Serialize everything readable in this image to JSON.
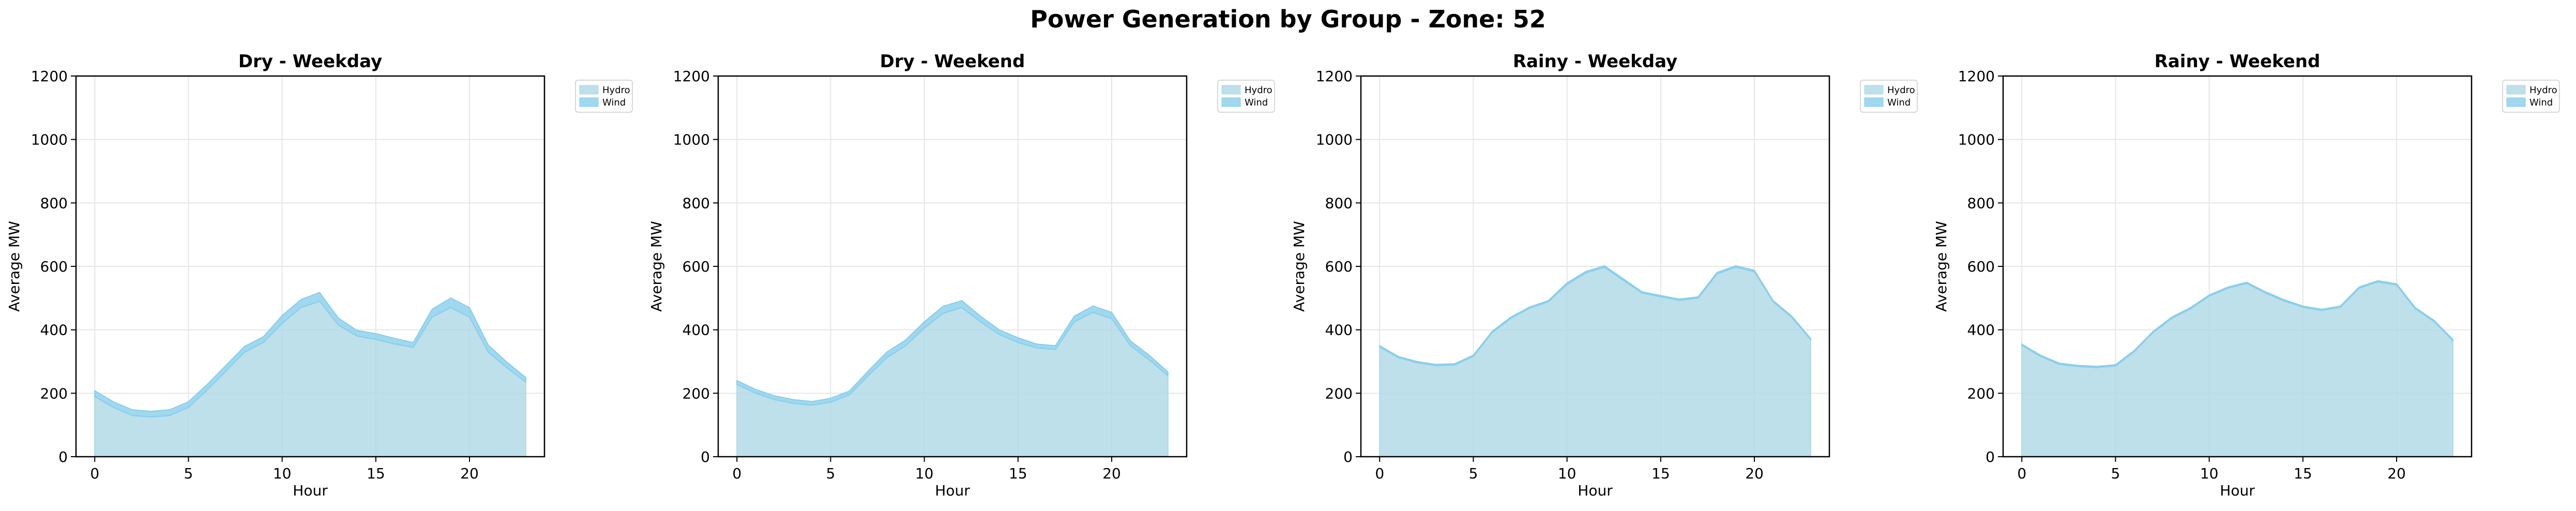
{
  "figure": {
    "title": "Power Generation by Group - Zone: 52"
  },
  "colors": {
    "hydro_fill": "#ADD8E6",
    "wind_fill": "#87CEEB",
    "grid": "#e6e6e6",
    "axis": "#000000"
  },
  "chart_data": [
    {
      "type": "area",
      "stacked": true,
      "title": "Dry - Weekday",
      "xlabel": "Hour",
      "ylabel": "Average MW",
      "xlim": [
        -1,
        24
      ],
      "ylim": [
        0,
        1200
      ],
      "xticks": [
        0,
        5,
        10,
        15,
        20
      ],
      "yticks": [
        0,
        200,
        400,
        600,
        800,
        1000,
        1200
      ],
      "grid": true,
      "legend_position": "outside-top-right",
      "x": [
        0,
        1,
        2,
        3,
        4,
        5,
        6,
        7,
        8,
        9,
        10,
        11,
        12,
        13,
        14,
        15,
        16,
        17,
        18,
        19,
        20,
        21,
        22,
        23
      ],
      "series": [
        {
          "name": "Hydro",
          "color": "#ADD8E6",
          "values": [
            190,
            155,
            130,
            125,
            130,
            155,
            210,
            270,
            330,
            360,
            420,
            470,
            490,
            415,
            380,
            370,
            355,
            345,
            440,
            470,
            440,
            330,
            280,
            235
          ]
        },
        {
          "name": "Wind",
          "color": "#87CEEB",
          "values": [
            18,
            18,
            18,
            18,
            18,
            18,
            18,
            18,
            18,
            18,
            25,
            25,
            28,
            22,
            18,
            18,
            18,
            15,
            25,
            30,
            30,
            22,
            18,
            15
          ]
        }
      ]
    },
    {
      "type": "area",
      "stacked": true,
      "title": "Dry - Weekend",
      "xlabel": "Hour",
      "ylabel": "Average MW",
      "xlim": [
        -1,
        24
      ],
      "ylim": [
        0,
        1200
      ],
      "xticks": [
        0,
        5,
        10,
        15,
        20
      ],
      "yticks": [
        0,
        200,
        400,
        600,
        800,
        1000,
        1200
      ],
      "grid": true,
      "legend_position": "outside-top-right",
      "x": [
        0,
        1,
        2,
        3,
        4,
        5,
        6,
        7,
        8,
        9,
        10,
        11,
        12,
        13,
        14,
        15,
        16,
        17,
        18,
        19,
        20,
        21,
        22,
        23
      ],
      "series": [
        {
          "name": "Hydro",
          "color": "#ADD8E6",
          "values": [
            228,
            200,
            180,
            168,
            162,
            172,
            195,
            255,
            312,
            350,
            405,
            452,
            470,
            425,
            385,
            360,
            343,
            338,
            425,
            455,
            435,
            350,
            305,
            255
          ]
        },
        {
          "name": "Wind",
          "color": "#87CEEB",
          "values": [
            12,
            12,
            12,
            12,
            12,
            12,
            12,
            15,
            18,
            18,
            20,
            22,
            22,
            18,
            15,
            15,
            12,
            12,
            18,
            20,
            20,
            15,
            15,
            12
          ]
        }
      ]
    },
    {
      "type": "area",
      "stacked": true,
      "title": "Rainy - Weekday",
      "xlabel": "Hour",
      "ylabel": "Average MW",
      "xlim": [
        -1,
        24
      ],
      "ylim": [
        0,
        1200
      ],
      "xticks": [
        0,
        5,
        10,
        15,
        20
      ],
      "yticks": [
        0,
        200,
        400,
        600,
        800,
        1000,
        1200
      ],
      "grid": true,
      "legend_position": "outside-top-right",
      "x": [
        0,
        1,
        2,
        3,
        4,
        5,
        6,
        7,
        8,
        9,
        10,
        11,
        12,
        13,
        14,
        15,
        16,
        17,
        18,
        19,
        20,
        21,
        22,
        23
      ],
      "series": [
        {
          "name": "Hydro",
          "color": "#ADD8E6",
          "values": [
            346,
            312,
            296,
            287,
            289,
            316,
            391,
            436,
            468,
            488,
            543,
            579,
            597,
            556,
            516,
            504,
            493,
            500,
            576,
            597,
            583,
            488,
            439,
            369
          ]
        },
        {
          "name": "Wind",
          "color": "#87CEEB",
          "values": [
            4,
            4,
            4,
            4,
            4,
            4,
            4,
            4,
            4,
            4,
            5,
            5,
            5,
            5,
            4,
            4,
            4,
            4,
            5,
            5,
            5,
            4,
            4,
            4
          ]
        }
      ]
    },
    {
      "type": "area",
      "stacked": true,
      "title": "Rainy - Weekend",
      "xlabel": "Hour",
      "ylabel": "Average MW",
      "xlim": [
        -1,
        24
      ],
      "ylim": [
        0,
        1200
      ],
      "xticks": [
        0,
        5,
        10,
        15,
        20
      ],
      "yticks": [
        0,
        200,
        400,
        600,
        800,
        1000,
        1200
      ],
      "grid": true,
      "legend_position": "outside-top-right",
      "x": [
        0,
        1,
        2,
        3,
        4,
        5,
        6,
        7,
        8,
        9,
        10,
        11,
        12,
        13,
        14,
        15,
        16,
        17,
        18,
        19,
        20,
        21,
        22,
        23
      ],
      "series": [
        {
          "name": "Hydro",
          "color": "#ADD8E6",
          "values": [
            351,
            316,
            291,
            284,
            281,
            286,
            331,
            391,
            436,
            466,
            506,
            531,
            546,
            516,
            491,
            471,
            461,
            471,
            531,
            551,
            541,
            466,
            426,
            366
          ]
        },
        {
          "name": "Wind",
          "color": "#87CEEB",
          "values": [
            4,
            4,
            4,
            4,
            4,
            4,
            4,
            4,
            4,
            4,
            4,
            4,
            4,
            4,
            4,
            4,
            4,
            4,
            4,
            4,
            4,
            4,
            4,
            4
          ]
        }
      ]
    }
  ]
}
